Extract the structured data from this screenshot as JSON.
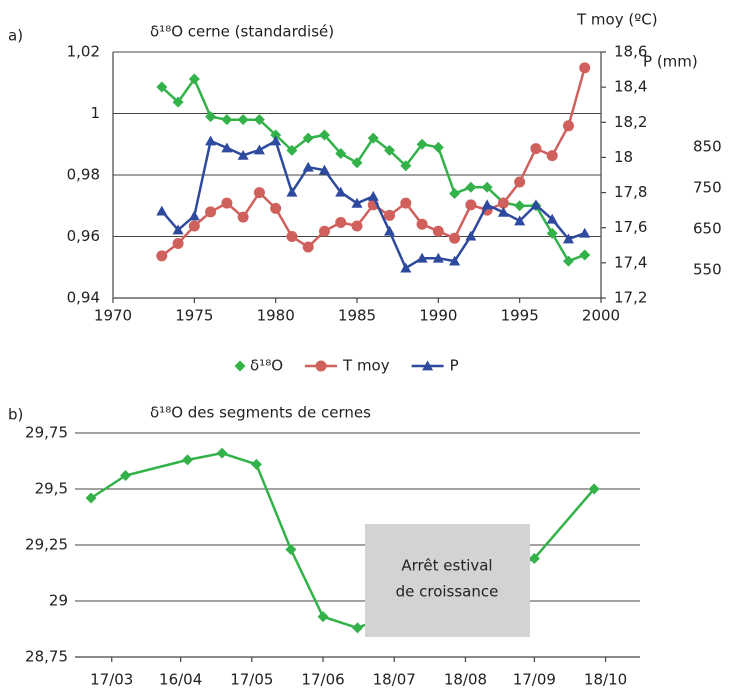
{
  "chart_data": [
    {
      "type": "line",
      "panel_label": "a)",
      "title": "δ¹⁸O cerne (standardisé)",
      "y2_title": "T moy (ºC)",
      "y3_title": "P (mm)",
      "x": [
        1973,
        1974,
        1975,
        1976,
        1977,
        1978,
        1979,
        1980,
        1981,
        1982,
        1983,
        1984,
        1985,
        1986,
        1987,
        1988,
        1989,
        1990,
        1991,
        1992,
        1993,
        1994,
        1995,
        1996,
        1997,
        1998,
        1999
      ],
      "xlim": [
        1970,
        2000
      ],
      "xticks": [
        1970,
        1975,
        1980,
        1985,
        1990,
        1995,
        2000
      ],
      "ylim": [
        0.94,
        1.02
      ],
      "yticks": [
        {
          "value": 0.94,
          "label": "0,94"
        },
        {
          "value": 0.96,
          "label": "0,96"
        },
        {
          "value": 0.98,
          "label": "0,98"
        },
        {
          "value": 1,
          "label": "1"
        },
        {
          "value": 1.02,
          "label": "1,02"
        }
      ],
      "y2lim": [
        17.2,
        18.6
      ],
      "y2ticks": [
        {
          "value": 17.2,
          "label": "17,2"
        },
        {
          "value": 17.4,
          "label": "17,4"
        },
        {
          "value": 17.6,
          "label": "17,6"
        },
        {
          "value": 17.8,
          "label": "17,8"
        },
        {
          "value": 18,
          "label": "18"
        },
        {
          "value": 18.2,
          "label": "18,2"
        },
        {
          "value": 18.4,
          "label": "18,4"
        },
        {
          "value": 18.6,
          "label": "18,6"
        }
      ],
      "y3lim": [
        482,
        1082
      ],
      "y3ticks": [
        550,
        650,
        750,
        850
      ],
      "grid": true,
      "legend": "bottom",
      "series": [
        {
          "name": "δ¹⁸O",
          "color": "#33b24a",
          "marker": "diamond",
          "axis": "y",
          "values": [
            1.0086,
            1.0037,
            1.0112,
            0.999,
            0.998,
            0.998,
            0.998,
            0.993,
            0.988,
            0.992,
            0.993,
            0.987,
            0.984,
            0.992,
            0.988,
            0.983,
            0.99,
            0.989,
            0.974,
            0.976,
            0.976,
            0.971,
            0.97,
            0.97,
            0.961,
            0.952,
            0.954
          ]
        },
        {
          "name": "T moy",
          "color": "#d0605c",
          "marker": "circle",
          "axis": "y2",
          "values": [
            17.44,
            17.51,
            17.61,
            17.69,
            17.74,
            17.66,
            17.8,
            17.71,
            17.55,
            17.49,
            17.58,
            17.63,
            17.61,
            17.73,
            17.67,
            17.74,
            17.62,
            17.58,
            17.54,
            17.73,
            17.7,
            17.74,
            17.86,
            18.05,
            18.01,
            18.18,
            18.51
          ]
        },
        {
          "name": "P",
          "color": "#2e4a9e",
          "marker": "triangle",
          "axis": "y3",
          "values": [
            694,
            648,
            682,
            865,
            848,
            830,
            843,
            865,
            740,
            801,
            794,
            740,
            713,
            730,
            645,
            555,
            579,
            579,
            572,
            633,
            709,
            691,
            670,
            709,
            674,
            626,
            640
          ]
        }
      ]
    },
    {
      "type": "line",
      "panel_label": "b)",
      "title": "δ¹⁸O des segments de cernes",
      "x": [
        67,
        82,
        109,
        124,
        139,
        154,
        168,
        183,
        260,
        286
      ],
      "xlim": [
        60,
        306
      ],
      "xticks": [
        {
          "value": 76,
          "label": "17/03"
        },
        {
          "value": 106,
          "label": "16/04"
        },
        {
          "value": 137,
          "label": "17/05"
        },
        {
          "value": 168,
          "label": "17/06"
        },
        {
          "value": 199,
          "label": "18/07"
        },
        {
          "value": 230,
          "label": "18/08"
        },
        {
          "value": 260,
          "label": "17/09"
        },
        {
          "value": 291,
          "label": "18/10"
        }
      ],
      "ylim": [
        28.75,
        29.75
      ],
      "yticks": [
        {
          "value": 28.75,
          "label": "28,75"
        },
        {
          "value": 29,
          "label": "29"
        },
        {
          "value": 29.25,
          "label": "29,25"
        },
        {
          "value": 29.5,
          "label": "29,5"
        },
        {
          "value": 29.75,
          "label": "29,75"
        }
      ],
      "grid": true,
      "series": [
        {
          "color": "#33b24a",
          "marker": "diamond",
          "axis": "y",
          "values": [
            29.46,
            29.56,
            29.63,
            29.66,
            29.61,
            29.23,
            28.93,
            28.88,
            29.19,
            29.5
          ]
        }
      ],
      "annotation": [
        "Arrêt estival",
        "de croissance"
      ]
    }
  ]
}
